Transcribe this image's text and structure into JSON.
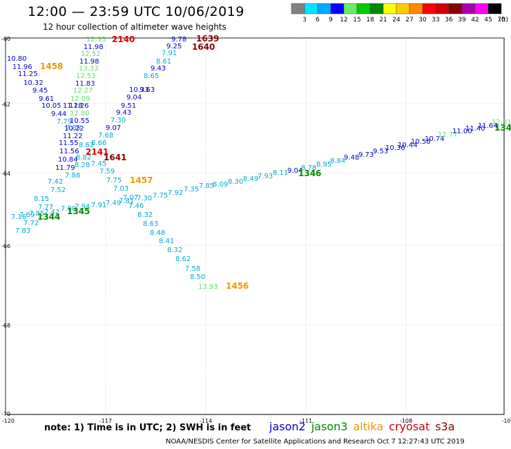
{
  "header": {
    "title": "12:00 — 23:59 UTC 10/06/2019",
    "subtitle": "12 hour collection of altimeter wave heights"
  },
  "colorbar": {
    "unit": "(ft)",
    "labels": [
      "3",
      "6",
      "9",
      "12",
      "15",
      "18",
      "21",
      "24",
      "27",
      "30",
      "33",
      "36",
      "39",
      "42",
      "45",
      "70"
    ],
    "colors": [
      "#808080",
      "#00e5ff",
      "#00aaff",
      "#0000ff",
      "#66ee66",
      "#00cc00",
      "#008800",
      "#ffff00",
      "#ffcc00",
      "#ff8800",
      "#ff0000",
      "#cc0000",
      "#880000",
      "#aa00aa",
      "#ff00ff",
      "#000000"
    ]
  },
  "axes": {
    "lat_labels": [
      "-60",
      "-62",
      "-64",
      "-66",
      "-68",
      "-70"
    ],
    "lon_labels": [
      "-120",
      "-117",
      "-114",
      "-111",
      "-108",
      "-10"
    ]
  },
  "tracks": [
    {
      "name": "track-jason2-1458",
      "labels": [
        {
          "t": "10.80",
          "c": "#0000cc"
        },
        {
          "t": "11.96",
          "c": "#0000cc"
        },
        {
          "t": "11.25",
          "c": "#0000cc"
        },
        {
          "t": "10.32",
          "c": "#0000cc"
        },
        {
          "t": "9.45",
          "c": "#0000cc"
        },
        {
          "t": "9.61",
          "c": "#0000cc"
        },
        {
          "t": "10.05",
          "c": "#0000cc"
        },
        {
          "t": "9.44",
          "c": "#0000cc"
        },
        {
          "t": "7.79",
          "c": "#00aacc"
        },
        {
          "t": "7.89",
          "c": "#00aacc"
        },
        {
          "t": "11.28",
          "c": "#0000cc"
        },
        {
          "t": "11.55",
          "c": "#0000cc"
        },
        {
          "t": "11.56",
          "c": "#0000cc"
        },
        {
          "t": "10.84",
          "c": "#0000cc"
        },
        {
          "t": "11.79",
          "c": "#0000cc"
        },
        {
          "t": "7.88",
          "c": "#00aacc"
        },
        {
          "t": "7.42",
          "c": "#00aacc"
        },
        {
          "t": "7.52",
          "c": "#00aacc"
        },
        {
          "t": "8.15",
          "c": "#00aacc"
        },
        {
          "t": "7.77",
          "c": "#00aacc"
        },
        {
          "t": "7.69",
          "c": "#00aacc"
        },
        {
          "t": "7.16",
          "c": "#00aacc"
        },
        {
          "t": "7.72",
          "c": "#00aacc"
        },
        {
          "t": "7.83",
          "c": "#00aacc"
        }
      ]
    },
    {
      "name": "track-jason2-2140",
      "labels": [
        {
          "t": "12.93",
          "c": "#66dd66"
        },
        {
          "t": "11.98",
          "c": "#0000cc"
        },
        {
          "t": "12.52",
          "c": "#66dd66"
        },
        {
          "t": "11.98",
          "c": "#0000cc"
        },
        {
          "t": "13.33",
          "c": "#66dd66"
        },
        {
          "t": "12.53",
          "c": "#66dd66"
        },
        {
          "t": "11.83",
          "c": "#0000cc"
        },
        {
          "t": "12.27",
          "c": "#66dd66"
        },
        {
          "t": "12.09",
          "c": "#66dd66"
        },
        {
          "t": "11.26",
          "c": "#0000cc"
        },
        {
          "t": "12.80",
          "c": "#66dd66"
        },
        {
          "t": "10.55",
          "c": "#0000cc"
        },
        {
          "t": "10.22",
          "c": "#0000cc"
        },
        {
          "t": "11.22",
          "c": "#0000cc"
        },
        {
          "t": "8.82",
          "c": "#00aacc"
        },
        {
          "t": "8.62",
          "c": "#00aacc"
        },
        {
          "t": "8.28",
          "c": "#00aacc"
        }
      ]
    },
    {
      "name": "track-jason2-1639",
      "labels": [
        {
          "t": "9.78",
          "c": "#0000cc"
        },
        {
          "t": "9.25",
          "c": "#0000cc"
        },
        {
          "t": "7.91",
          "c": "#00aacc"
        },
        {
          "t": "8.61",
          "c": "#00aacc"
        },
        {
          "t": "9.43",
          "c": "#0000cc"
        },
        {
          "t": "8.65",
          "c": "#00aacc"
        },
        {
          "t": "9.63",
          "c": "#0000cc"
        },
        {
          "t": "10.33",
          "c": "#0000cc"
        },
        {
          "t": "9.04",
          "c": "#0000cc"
        },
        {
          "t": "9.51",
          "c": "#0000cc"
        },
        {
          "t": "9.43",
          "c": "#0000cc"
        },
        {
          "t": "7.30",
          "c": "#00aacc"
        },
        {
          "t": "9.07",
          "c": "#0000cc"
        },
        {
          "t": "7.68",
          "c": "#00aacc"
        },
        {
          "t": "8.66",
          "c": "#00aacc"
        },
        {
          "t": "7.45",
          "c": "#00aacc"
        },
        {
          "t": "7.59",
          "c": "#00aacc"
        }
      ]
    },
    {
      "name": "track-jason3-1345",
      "labels": [
        {
          "t": "7.85",
          "c": "#00aacc"
        },
        {
          "t": "7.42",
          "c": "#00aacc"
        },
        {
          "t": "7.80",
          "c": "#00aacc"
        },
        {
          "t": "7.94",
          "c": "#00aacc"
        },
        {
          "t": "7.91",
          "c": "#00aacc"
        },
        {
          "t": "7.49",
          "c": "#00aacc"
        },
        {
          "t": "7.81",
          "c": "#00aacc"
        },
        {
          "t": "7.07",
          "c": "#00aacc"
        },
        {
          "t": "7.30",
          "c": "#00aacc"
        },
        {
          "t": "7.75",
          "c": "#00aacc"
        },
        {
          "t": "7.92",
          "c": "#00aacc"
        },
        {
          "t": "7.35",
          "c": "#00aacc"
        },
        {
          "t": "7.85",
          "c": "#00aacc"
        },
        {
          "t": "8.09",
          "c": "#00aacc"
        },
        {
          "t": "8.30",
          "c": "#00aacc"
        },
        {
          "t": "8.49",
          "c": "#00aacc"
        },
        {
          "t": "7.93",
          "c": "#00aacc"
        },
        {
          "t": "8.11",
          "c": "#00aacc"
        },
        {
          "t": "9.04",
          "c": "#0000cc"
        },
        {
          "t": "8.78",
          "c": "#00aacc"
        },
        {
          "t": "8.95",
          "c": "#00aacc"
        },
        {
          "t": "8.84",
          "c": "#00aacc"
        },
        {
          "t": "9.48",
          "c": "#0000cc"
        },
        {
          "t": "9.73",
          "c": "#0000cc"
        },
        {
          "t": "9.53",
          "c": "#0000cc"
        },
        {
          "t": "10.36",
          "c": "#0000cc"
        },
        {
          "t": "10.44",
          "c": "#0000cc"
        },
        {
          "t": "10.58",
          "c": "#0000cc"
        },
        {
          "t": "10.74",
          "c": "#0000cc"
        },
        {
          "t": "12.77",
          "c": "#66dd66"
        },
        {
          "t": "11.00",
          "c": "#0000cc"
        },
        {
          "t": "11.40",
          "c": "#0000cc"
        },
        {
          "t": "11.64",
          "c": "#0000cc"
        },
        {
          "t": "12.81",
          "c": "#66dd66"
        }
      ]
    },
    {
      "name": "track-altika-1457",
      "labels": [
        {
          "t": "7.75",
          "c": "#00aacc"
        },
        {
          "t": "7.03",
          "c": "#00aacc"
        },
        {
          "t": "7.46",
          "c": "#00aacc"
        },
        {
          "t": "8.32",
          "c": "#00aacc"
        },
        {
          "t": "8.63",
          "c": "#00aacc"
        },
        {
          "t": "8.48",
          "c": "#00aacc"
        },
        {
          "t": "8.41",
          "c": "#00aacc"
        },
        {
          "t": "8.32",
          "c": "#00aacc"
        },
        {
          "t": "8.62",
          "c": "#00aacc"
        },
        {
          "t": "7.58",
          "c": "#00aacc"
        },
        {
          "t": "8.50",
          "c": "#00aacc"
        },
        {
          "t": "13.93",
          "c": "#66dd66"
        }
      ]
    }
  ],
  "time_labels": [
    {
      "t": "1458",
      "c": "#ee9900"
    },
    {
      "t": "2140",
      "c": "#dd0000"
    },
    {
      "t": "1639",
      "c": "#880000"
    },
    {
      "t": "1640",
      "c": "#880000"
    },
    {
      "t": "2141",
      "c": "#dd0000"
    },
    {
      "t": "1641",
      "c": "#880000"
    },
    {
      "t": "1457",
      "c": "#ee9900"
    },
    {
      "t": "1344",
      "c": "#008800"
    },
    {
      "t": "1345",
      "c": "#008800"
    },
    {
      "t": "1346",
      "c": "#008800"
    },
    {
      "t": "1456",
      "c": "#ee9900"
    },
    {
      "t": "134",
      "c": "#008800"
    }
  ],
  "footer": {
    "note": "note: 1) Time is in UTC; 2) SWH is in feet",
    "legend": [
      {
        "t": "jason2",
        "c": "#0000cc"
      },
      {
        "t": "jason3",
        "c": "#008800"
      },
      {
        "t": "altika",
        "c": "#ee9900"
      },
      {
        "t": "cryosat",
        "c": "#cc0000"
      },
      {
        "t": "s3a",
        "c": "#880000"
      }
    ],
    "credit": "NOAA/NESDIS Center for Satellite Applications and Research   Oct  7 12:27:43 UTC 2019"
  }
}
